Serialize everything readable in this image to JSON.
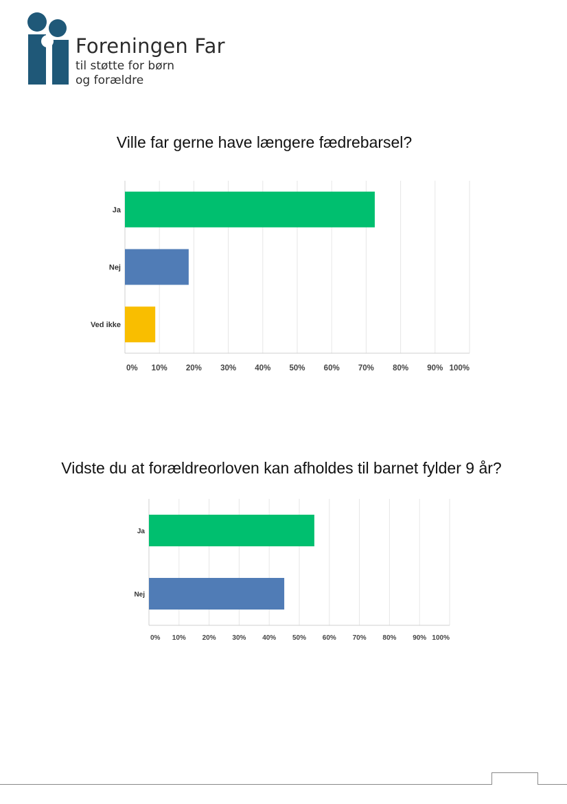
{
  "logo": {
    "name": "Foreningen Far",
    "tagline_1": "til støtte for børn",
    "tagline_2": "og forældre",
    "color": "#1f5878"
  },
  "chart_data": [
    {
      "type": "bar",
      "orientation": "horizontal",
      "title": "Ville far gerne have længere fædrebarsel?",
      "categories": [
        "Ja",
        "Nej",
        "Ved ikke"
      ],
      "values": [
        72.5,
        18.5,
        8.8
      ],
      "colors": [
        "#00bf6f",
        "#507cb6",
        "#f9be00"
      ],
      "xlim": [
        0,
        100
      ],
      "xticks": [
        "0%",
        "10%",
        "20%",
        "30%",
        "40%",
        "50%",
        "60%",
        "70%",
        "80%",
        "90%",
        "100%"
      ],
      "grid": true,
      "xlabel": "",
      "ylabel": ""
    },
    {
      "type": "bar",
      "orientation": "horizontal",
      "title": "Vidste du at forældreorloven kan afholdes til barnet fylder 9 år?",
      "categories": [
        "Ja",
        "Nej"
      ],
      "values": [
        55,
        45
      ],
      "colors": [
        "#00bf6f",
        "#507cb6"
      ],
      "xlim": [
        0,
        100
      ],
      "xticks": [
        "0%",
        "10%",
        "20%",
        "30%",
        "40%",
        "50%",
        "60%",
        "70%",
        "80%",
        "90%",
        "100%"
      ],
      "grid": true,
      "xlabel": "",
      "ylabel": ""
    }
  ]
}
